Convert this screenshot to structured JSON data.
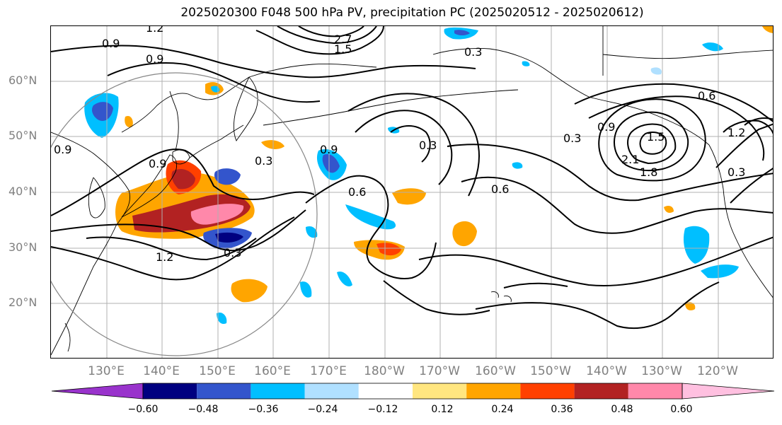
{
  "title": "2025020300 F048 500 hPa PV, precipitation PC (2025020512 - 2025020612)",
  "lat_labels": [
    "60°N",
    "50°N",
    "40°N",
    "30°N",
    "20°N"
  ],
  "lon_labels": [
    "130°E",
    "140°E",
    "150°E",
    "160°E",
    "170°E",
    "180°W",
    "170°W",
    "160°W",
    "150°W",
    "140°W",
    "130°W",
    "120°W"
  ],
  "colorbar": {
    "ticks": [
      "−0.60",
      "−0.48",
      "−0.36",
      "−0.24",
      "−0.12",
      "0.12",
      "0.24",
      "0.36",
      "0.48",
      "0.60"
    ],
    "colors": [
      "#9933cc",
      "#000080",
      "#3355cc",
      "#00bfff",
      "#b0e0ff",
      "#ffffff",
      "#ffe680",
      "#ffa500",
      "#ff4000",
      "#b22222",
      "#ff88aa",
      "#ffc0e0"
    ]
  },
  "contour_labels": [
    {
      "text": "1.2"
    },
    {
      "text": "0.9"
    },
    {
      "text": "0.9"
    },
    {
      "text": "2.7"
    },
    {
      "text": "1.5"
    },
    {
      "text": "0.3"
    },
    {
      "text": "0.3"
    },
    {
      "text": "0.9"
    },
    {
      "text": "0.6"
    },
    {
      "text": "0.3"
    },
    {
      "text": "0.6"
    },
    {
      "text": "0.3"
    },
    {
      "text": "0.9"
    },
    {
      "text": "2.1"
    },
    {
      "text": "1.5"
    },
    {
      "text": "1.8"
    },
    {
      "text": "0.6"
    },
    {
      "text": "1.2"
    },
    {
      "text": "0.3"
    },
    {
      "text": "1.2"
    },
    {
      "text": "0.3"
    },
    {
      "text": "0.9"
    },
    {
      "text": "0.9"
    }
  ]
}
